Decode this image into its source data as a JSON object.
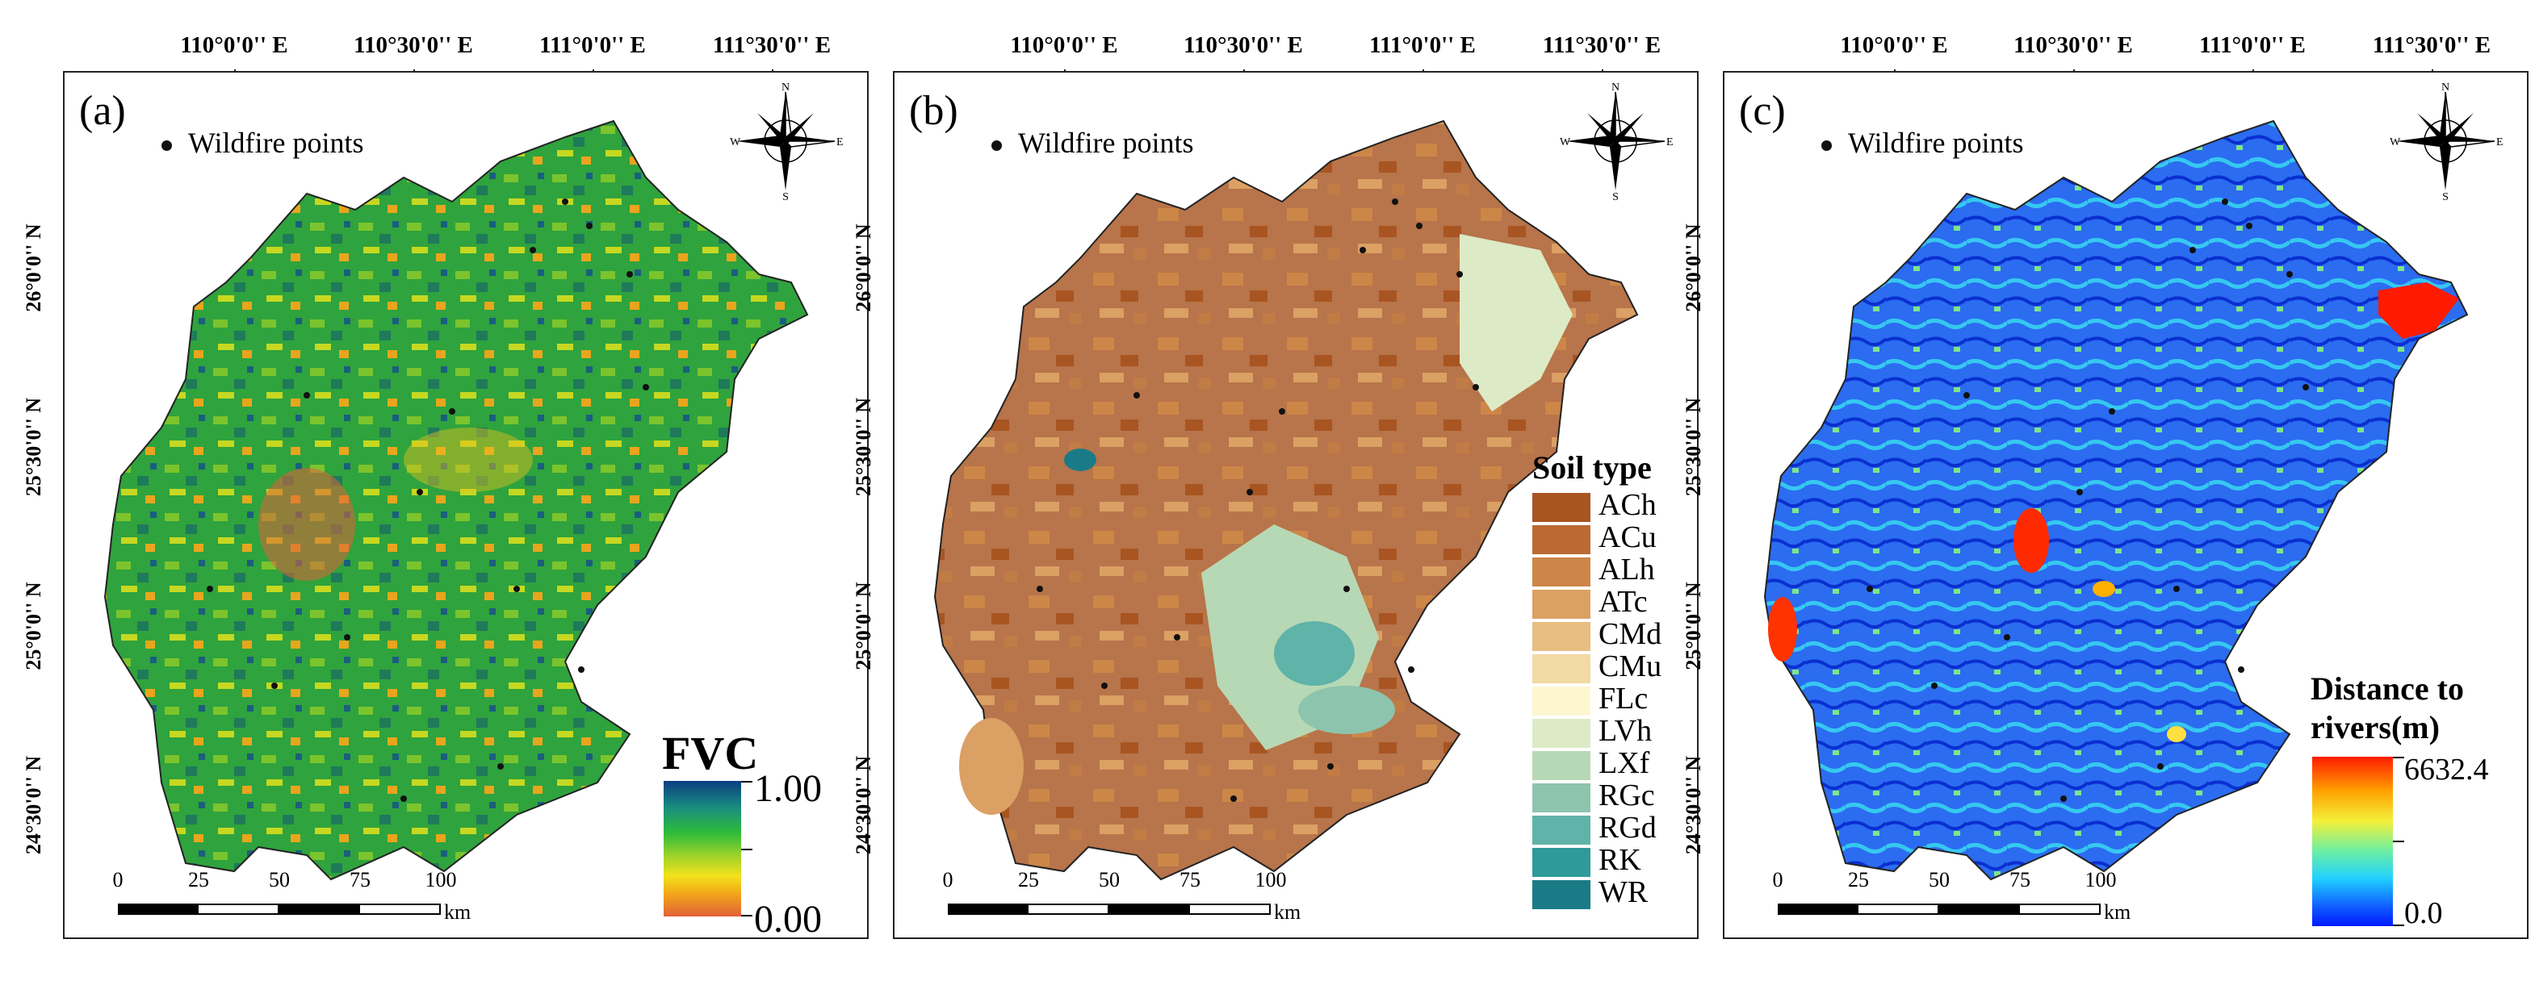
{
  "lon_ticks": [
    "110°0'0'' E",
    "110°30'0'' E",
    "111°0'0'' E",
    "111°30'0'' E"
  ],
  "lat_ticks": [
    "26°0'0'' N",
    "25°30'0'' N",
    "25°0'0'' N",
    "24°30'0'' N"
  ],
  "wildfire_legend": "Wildfire points",
  "compass": {
    "n": "N",
    "s": "S",
    "e": "E",
    "w": "W"
  },
  "scalebar": {
    "labels": [
      "0",
      "25",
      "50",
      "75",
      "100"
    ],
    "unit": "km"
  },
  "panels": [
    {
      "label": "(a)",
      "legend_title": "FVC",
      "max": "1.00",
      "min": "0.00"
    },
    {
      "label": "(b)",
      "legend_title": "Soil type"
    },
    {
      "label": "(c)",
      "legend_title": "Distance to rivers(m)",
      "max": "6632.4",
      "min": "0.0"
    }
  ],
  "soil_types": [
    {
      "name": "ACh",
      "color": "#a85522"
    },
    {
      "name": "ACu",
      "color": "#bb6a33"
    },
    {
      "name": "ALh",
      "color": "#cc8647"
    },
    {
      "name": "ATc",
      "color": "#dba063"
    },
    {
      "name": "CMd",
      "color": "#e8bd80"
    },
    {
      "name": "CMu",
      "color": "#f3d9a3"
    },
    {
      "name": "FLc",
      "color": "#fdf7cf"
    },
    {
      "name": "LVh",
      "color": "#dcebc6"
    },
    {
      "name": "LXf",
      "color": "#b7d8b4"
    },
    {
      "name": "RGc",
      "color": "#8dc4ad"
    },
    {
      "name": "RGd",
      "color": "#5fb3a8"
    },
    {
      "name": "RK",
      "color": "#2e9a9a"
    },
    {
      "name": "WR",
      "color": "#1a7b86"
    }
  ],
  "colors": {
    "fvc_map": "#3fae3a",
    "soil_map": "#b8744a",
    "river_map": "#2b6cf0",
    "fire_points": "#111111"
  }
}
